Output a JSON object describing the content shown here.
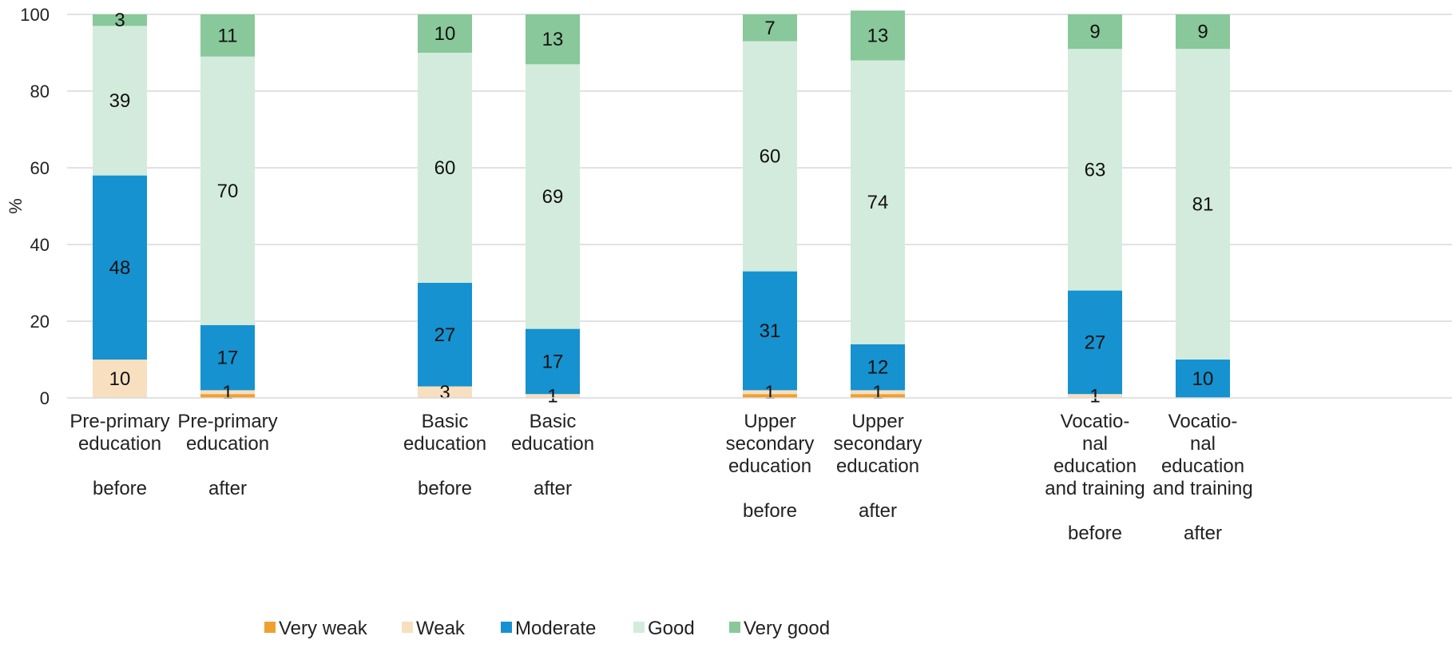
{
  "chart_data": {
    "type": "bar",
    "stacked": true,
    "ylabel": "%",
    "ylim": [
      0,
      100
    ],
    "yticks": [
      0,
      20,
      40,
      60,
      80,
      100
    ],
    "grid": true,
    "legend_position": "bottom",
    "categories": [
      {
        "lines": [
          "Pre-primary",
          "education",
          "",
          "before"
        ]
      },
      {
        "lines": [
          "Pre-primary",
          "education",
          "",
          "after"
        ]
      },
      {
        "lines": [
          "Basic",
          "education",
          "",
          "before"
        ]
      },
      {
        "lines": [
          "Basic",
          "education",
          "",
          "after"
        ]
      },
      {
        "lines": [
          "Upper",
          "secondary",
          "education",
          "",
          "before"
        ]
      },
      {
        "lines": [
          "Upper",
          "secondary",
          "education",
          "",
          "after"
        ]
      },
      {
        "lines": [
          "Vocatio-",
          "nal",
          "education",
          "and training",
          "",
          "before"
        ]
      },
      {
        "lines": [
          "Vocatio-",
          "nal",
          "education",
          "and training",
          "",
          "after"
        ]
      }
    ],
    "series": [
      {
        "name": "Very weak",
        "color": "#f0a030",
        "values": [
          0,
          1,
          0,
          0,
          1,
          1,
          0,
          0
        ],
        "labels": [
          "",
          "",
          "",
          "",
          "",
          "",
          "",
          ""
        ]
      },
      {
        "name": "Weak",
        "color": "#f8dfc0",
        "values": [
          10,
          1,
          3,
          1,
          1,
          1,
          1,
          0
        ],
        "labels": [
          "10",
          "1",
          "3",
          "1",
          "1",
          "1",
          "1",
          ""
        ]
      },
      {
        "name": "Moderate",
        "color": "#1592cf",
        "values": [
          48,
          17,
          27,
          17,
          31,
          12,
          27,
          10
        ],
        "labels": [
          "48",
          "17",
          "27",
          "17",
          "31",
          "12",
          "27",
          "10"
        ]
      },
      {
        "name": "Good",
        "color": "#d3ebdc",
        "values": [
          39,
          70,
          60,
          69,
          60,
          74,
          63,
          81
        ],
        "labels": [
          "39",
          "70",
          "60",
          "69",
          "60",
          "74",
          "63",
          "81"
        ]
      },
      {
        "name": "Very good",
        "color": "#88c89a",
        "values": [
          3,
          11,
          10,
          13,
          7,
          13,
          9,
          9
        ],
        "labels": [
          "3",
          "11",
          "10",
          "13",
          "7",
          "13",
          "9",
          "9"
        ]
      }
    ]
  }
}
